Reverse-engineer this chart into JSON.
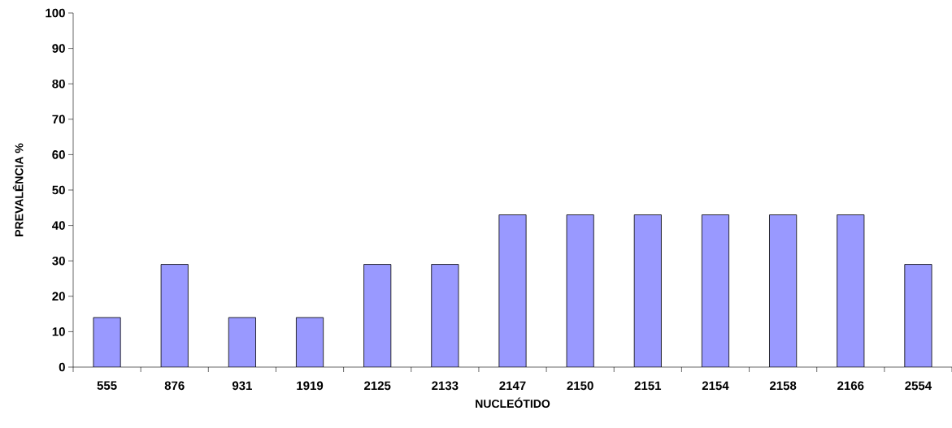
{
  "chart_data": {
    "type": "bar",
    "xlabel": "NUCLEÓTIDO",
    "ylabel": "PREVALÊNCIA %",
    "categories": [
      "555",
      "876",
      "931",
      "1919",
      "2125",
      "2133",
      "2147",
      "2150",
      "2151",
      "2154",
      "2158",
      "2166",
      "2554"
    ],
    "values": [
      14,
      29,
      14,
      14,
      29,
      29,
      43,
      43,
      43,
      43,
      43,
      43,
      29
    ],
    "color": "#9999ff",
    "ylim": [
      0,
      100
    ],
    "yticks": [
      0,
      10,
      20,
      30,
      40,
      50,
      60,
      70,
      80,
      90,
      100
    ],
    "grid": false
  }
}
